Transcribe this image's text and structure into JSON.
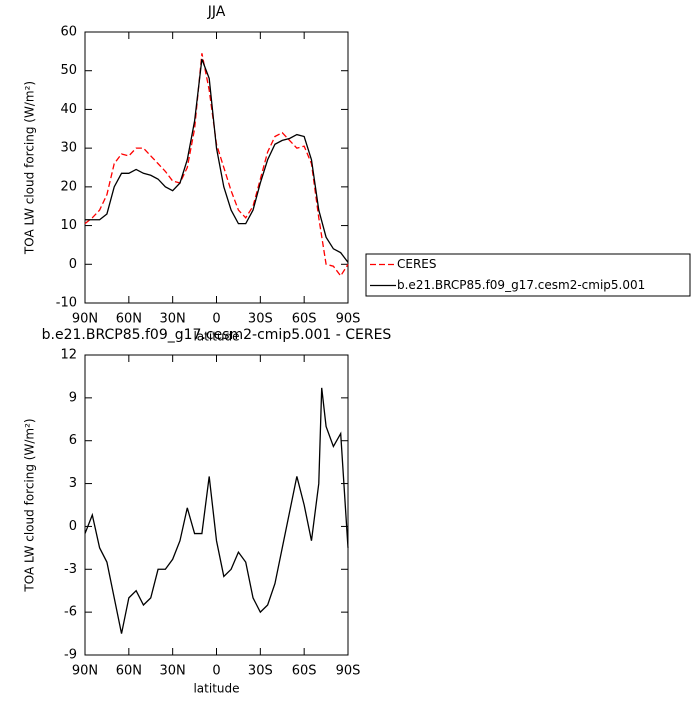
{
  "chart_data": [
    {
      "type": "line",
      "title": "JJA",
      "xlabel": "latitude",
      "ylabel": "TOA LW cloud forcing (W/m²)",
      "x": [
        90,
        85,
        80,
        75,
        70,
        65,
        60,
        55,
        50,
        45,
        40,
        35,
        30,
        25,
        20,
        15,
        10,
        5,
        0,
        -5,
        -10,
        -15,
        -20,
        -25,
        -30,
        -35,
        -40,
        -45,
        -50,
        -55,
        -60,
        -65,
        -70,
        -75,
        -80,
        -85,
        -90
      ],
      "series": [
        {
          "name": "CERES",
          "color": "#ff0000",
          "style": "dashed",
          "values": [
            10.5,
            12,
            14,
            18,
            26,
            28.5,
            28,
            30,
            30,
            28,
            26,
            24,
            21.5,
            21,
            25,
            35,
            54.5,
            45,
            31,
            25,
            19,
            14,
            12,
            15,
            22,
            29,
            33,
            34,
            32,
            30,
            30.5,
            26,
            12,
            0,
            -0.5,
            -3,
            0
          ]
        },
        {
          "name": "b.e21.BRCP85.f09_g17.cesm2-cmip5.001",
          "color": "#000000",
          "style": "solid",
          "values": [
            11.5,
            11.5,
            11.5,
            13,
            20,
            23.5,
            23.5,
            24.5,
            23.5,
            23,
            22,
            20,
            19,
            21,
            27,
            37,
            53,
            48,
            30,
            20,
            14,
            10.5,
            10.5,
            14,
            21,
            27,
            31,
            32,
            32.5,
            33.5,
            33,
            27,
            14,
            7,
            4,
            3,
            0.5
          ]
        }
      ],
      "xlim": [
        90,
        -90
      ],
      "xticks": [
        {
          "value": 90,
          "label": "90N"
        },
        {
          "value": 60,
          "label": "60N"
        },
        {
          "value": 30,
          "label": "30N"
        },
        0,
        {
          "value": -30,
          "label": "30S"
        },
        {
          "value": -60,
          "label": "60S"
        },
        {
          "value": -90,
          "label": "90S"
        }
      ],
      "ylim": [
        -10,
        60
      ],
      "yticks": [
        -10,
        0,
        10,
        20,
        30,
        40,
        50,
        60
      ],
      "legend": "right"
    },
    {
      "type": "line",
      "title": "b.e21.BRCP85.f09_g17.cesm2-cmip5.001  - CERES",
      "xlabel": "latitude",
      "ylabel": "TOA LW cloud forcing (W/m²)",
      "x": [
        90,
        85,
        80,
        75,
        70,
        65,
        60,
        55,
        50,
        45,
        40,
        35,
        30,
        25,
        20,
        15,
        10,
        5,
        0,
        -5,
        -10,
        -15,
        -20,
        -25,
        -30,
        -35,
        -40,
        -45,
        -50,
        -55,
        -60,
        -65,
        -70,
        -72,
        -75,
        -80,
        -85,
        -90
      ],
      "series": [
        {
          "color": "#000000",
          "style": "solid",
          "values": [
            -0.5,
            0.8,
            -1.5,
            -2.5,
            -5,
            -7.5,
            -5,
            -4.5,
            -5.5,
            -5,
            -3,
            -3,
            -2.3,
            -1,
            1.3,
            -0.5,
            -0.5,
            3.5,
            -1,
            -3.5,
            -3,
            -1.8,
            -2.5,
            -5,
            -6,
            -5.5,
            -4,
            -1.5,
            1,
            3.5,
            1.5,
            -1,
            3,
            9.7,
            7,
            5.6,
            6.5,
            -1.5
          ]
        }
      ],
      "xlim": [
        90,
        -90
      ],
      "xticks": [
        {
          "value": 90,
          "label": "90N"
        },
        {
          "value": 60,
          "label": "60N"
        },
        {
          "value": 30,
          "label": "30N"
        },
        0,
        {
          "value": -30,
          "label": "30S"
        },
        {
          "value": -60,
          "label": "60S"
        },
        {
          "value": -90,
          "label": "90S"
        }
      ],
      "ylim": [
        -9,
        12
      ],
      "yticks": [
        -9,
        -6,
        -3,
        0,
        3,
        6,
        9,
        12
      ]
    }
  ]
}
